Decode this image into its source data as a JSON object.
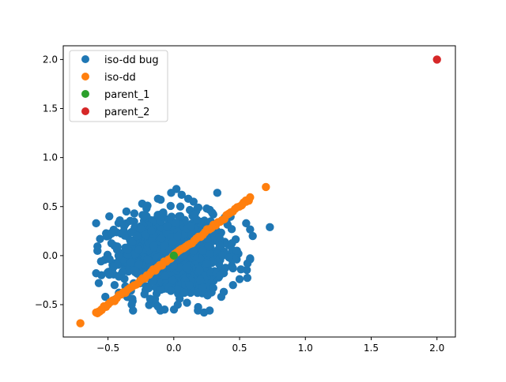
{
  "chart_data": {
    "type": "scatter",
    "title": "",
    "xlabel": "",
    "ylabel": "",
    "xlim": [
      -0.84,
      2.14
    ],
    "ylim": [
      -0.83,
      2.14
    ],
    "x_ticks": [
      "−0.5",
      "0.0",
      "0.5",
      "1.0",
      "1.5",
      "2.0"
    ],
    "y_ticks": [
      "−0.5",
      "0.0",
      "0.5",
      "1.0",
      "1.5",
      "2.0"
    ],
    "grid": false,
    "legend_position": "top-left",
    "series": [
      {
        "name": "iso-dd bug",
        "color": "#1f77b4",
        "points": [
          [
            0.02,
            0.68
          ],
          [
            -0.02,
            0.64
          ],
          [
            -0.12,
            0.58
          ],
          [
            -0.1,
            0.57
          ],
          [
            0.06,
            0.62
          ],
          [
            0.11,
            0.58
          ],
          [
            -0.24,
            0.53
          ],
          [
            0.15,
            0.55
          ],
          [
            -0.2,
            0.51
          ],
          [
            0.25,
            0.48
          ],
          [
            -0.36,
            0.45
          ],
          [
            -0.3,
            0.43
          ],
          [
            0.3,
            0.42
          ],
          [
            -0.49,
            0.4
          ],
          [
            -0.41,
            0.36
          ],
          [
            0.4,
            0.35
          ],
          [
            -0.59,
            0.33
          ],
          [
            0.44,
            0.27
          ],
          [
            0.55,
            0.33
          ],
          [
            0.6,
            0.2
          ],
          [
            0.73,
            0.29
          ],
          [
            -0.56,
            0.17
          ],
          [
            -0.45,
            0.1
          ],
          [
            -0.35,
            0.06
          ],
          [
            0.48,
            0.05
          ],
          [
            0.42,
            -0.02
          ],
          [
            0.56,
            -0.08
          ],
          [
            0.51,
            -0.14
          ],
          [
            -0.59,
            -0.18
          ],
          [
            -0.55,
            -0.2
          ],
          [
            -0.57,
            -0.28
          ],
          [
            -0.45,
            -0.3
          ],
          [
            -0.35,
            -0.36
          ],
          [
            0.5,
            -0.24
          ],
          [
            0.45,
            -0.3
          ],
          [
            0.38,
            -0.37
          ],
          [
            -0.52,
            -0.42
          ],
          [
            -0.45,
            -0.45
          ],
          [
            -0.32,
            -0.5
          ],
          [
            -0.18,
            -0.44
          ],
          [
            -0.07,
            -0.55
          ],
          [
            -0.12,
            -0.52
          ],
          [
            0.03,
            -0.5
          ],
          [
            0.1,
            -0.48
          ],
          [
            0.23,
            -0.58
          ],
          [
            0.18,
            -0.38
          ],
          [
            0.3,
            -0.33
          ],
          [
            -0.25,
            -0.28
          ],
          [
            0.25,
            -0.08
          ],
          [
            0.22,
            0.05
          ],
          [
            -0.28,
            0.2
          ],
          [
            -0.25,
            0.28
          ],
          [
            0.13,
            0.3
          ],
          [
            0.04,
            0.4
          ],
          [
            -0.08,
            0.44
          ],
          [
            0.16,
            0.42
          ],
          [
            -0.17,
            0.25
          ],
          [
            0.03,
            0.2
          ],
          [
            -0.07,
            0.1
          ],
          [
            0.1,
            -0.12
          ],
          [
            -0.01,
            -0.25
          ],
          [
            0.12,
            -0.3
          ],
          [
            -0.16,
            -0.16
          ],
          [
            -0.2,
            -0.04
          ],
          [
            0.2,
            0.15
          ],
          [
            -0.05,
            0.3
          ],
          [
            0.08,
            -0.38
          ],
          [
            -0.1,
            -0.35
          ],
          [
            0.35,
            -0.2
          ],
          [
            -0.38,
            0.25
          ],
          [
            0.28,
            0.35
          ],
          [
            -0.3,
            -0.15
          ],
          [
            0.0,
            -0.1
          ],
          [
            0.15,
            0.05
          ],
          [
            -0.15,
            0.1
          ],
          [
            0.35,
            0.1
          ],
          [
            -0.42,
            0.0
          ],
          [
            0.05,
            0.5
          ],
          [
            -0.22,
            0.4
          ],
          [
            0.2,
            -0.25
          ]
        ]
      },
      {
        "name": "iso-dd",
        "color": "#ff7f0e",
        "line_samples": 72,
        "line_x_range": [
          -0.58,
          0.58
        ],
        "points": [
          [
            -0.71,
            -0.69
          ],
          [
            0.7,
            0.7
          ],
          [
            0.57,
            0.56
          ],
          [
            0.55,
            0.55
          ],
          [
            0.52,
            0.52
          ],
          [
            -0.59,
            -0.58
          ],
          [
            -0.57,
            -0.57
          ],
          [
            -0.55,
            -0.55
          ]
        ]
      },
      {
        "name": "parent_1",
        "color": "#2ca02c",
        "points": [
          [
            0.0,
            0.0
          ]
        ]
      },
      {
        "name": "parent_2",
        "color": "#d62728",
        "points": [
          [
            2.0,
            2.0
          ]
        ]
      }
    ]
  }
}
